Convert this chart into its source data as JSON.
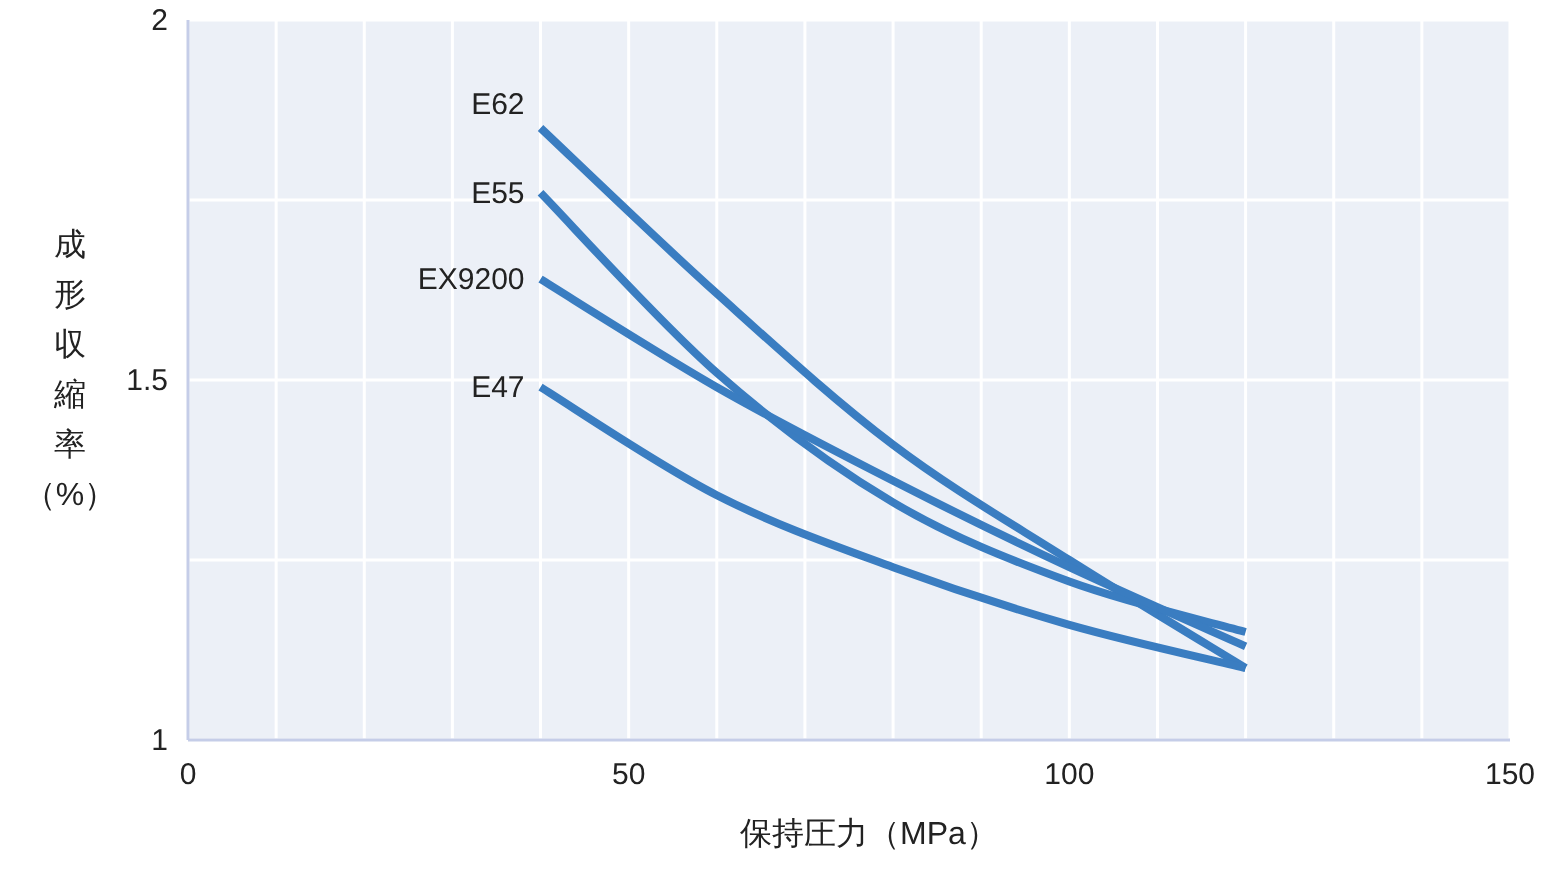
{
  "chart_data": {
    "type": "line",
    "xlabel": "保持圧力（MPa）",
    "ylabel": "成形収縮率（%）",
    "x": [
      40,
      60,
      80,
      100,
      120
    ],
    "series": [
      {
        "name": "E62",
        "color": "#3a7dc1",
        "values": [
          1.85,
          1.62,
          1.41,
          1.25,
          1.1
        ]
      },
      {
        "name": "E55",
        "color": "#3a7dc1",
        "values": [
          1.76,
          1.51,
          1.33,
          1.22,
          1.15
        ]
      },
      {
        "name": "EX9200",
        "color": "#3a7dc1",
        "values": [
          1.64,
          1.49,
          1.36,
          1.24,
          1.13
        ]
      },
      {
        "name": "E47",
        "color": "#3a7dc1",
        "values": [
          1.49,
          1.34,
          1.24,
          1.16,
          1.1
        ]
      }
    ],
    "xlim": [
      0,
      150
    ],
    "xticks": [
      0,
      {
        "value": 10,
        "label": null
      },
      {
        "value": 20,
        "label": null
      },
      {
        "value": 30,
        "label": null
      },
      {
        "value": 40,
        "label": null
      },
      50,
      {
        "value": 60,
        "label": null
      },
      {
        "value": 70,
        "label": null
      },
      {
        "value": 80,
        "label": null
      },
      {
        "value": 90,
        "label": null
      },
      100,
      {
        "value": 110,
        "label": null
      },
      {
        "value": 120,
        "label": null
      },
      {
        "value": 130,
        "label": null
      },
      {
        "value": 140,
        "label": null
      },
      150
    ],
    "ylim": [
      1,
      2
    ],
    "yticks": [
      1,
      {
        "value": 1.25,
        "label": null
      },
      1.5,
      {
        "value": 1.75,
        "label": null
      },
      2
    ],
    "grid": true,
    "marker": "none",
    "line_style": "solid"
  }
}
